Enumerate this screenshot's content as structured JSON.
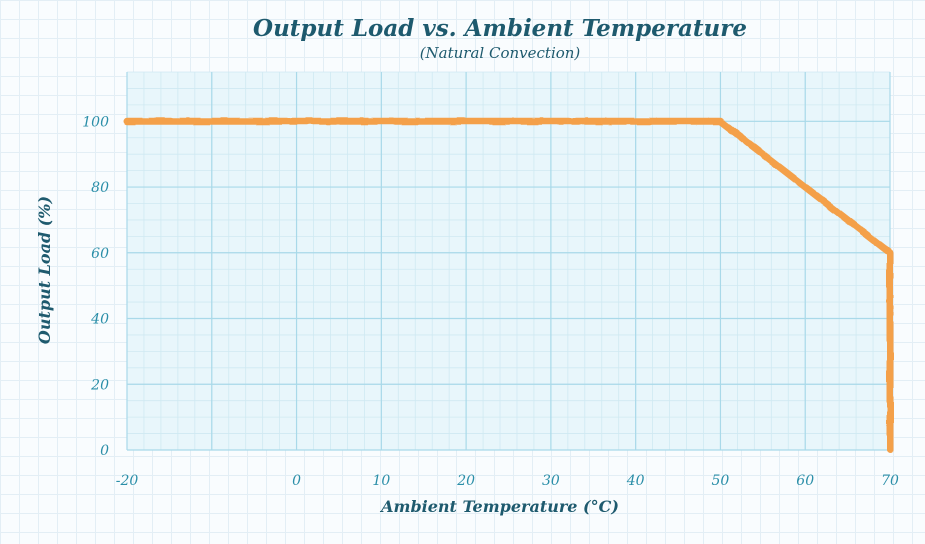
{
  "chart_data": {
    "type": "line",
    "title": "Output Load vs. Ambient Temperature",
    "subtitle": "(Natural Convection)",
    "xlabel": "Ambient Temperature (°C)",
    "ylabel": "Output Load (%)",
    "xlim": [
      -20,
      70
    ],
    "ylim": [
      0,
      115
    ],
    "xticks": [
      -20,
      0,
      10,
      20,
      30,
      40,
      50,
      60,
      70
    ],
    "yticks": [
      0,
      20,
      40,
      60,
      80,
      100
    ],
    "grid": true,
    "series": [
      {
        "x": [
          -20,
          50,
          60,
          70,
          70
        ],
        "y": [
          100,
          100,
          80,
          60,
          0
        ],
        "color": "#f4a04a"
      }
    ],
    "colors": {
      "line": "#f4a04a",
      "axis": "#4a4a4a",
      "plot_background": "#e8f6fb",
      "grid": "#a9d9e9",
      "tick_text": "#2a8ea8",
      "title_text": "#1e5a6e"
    }
  }
}
